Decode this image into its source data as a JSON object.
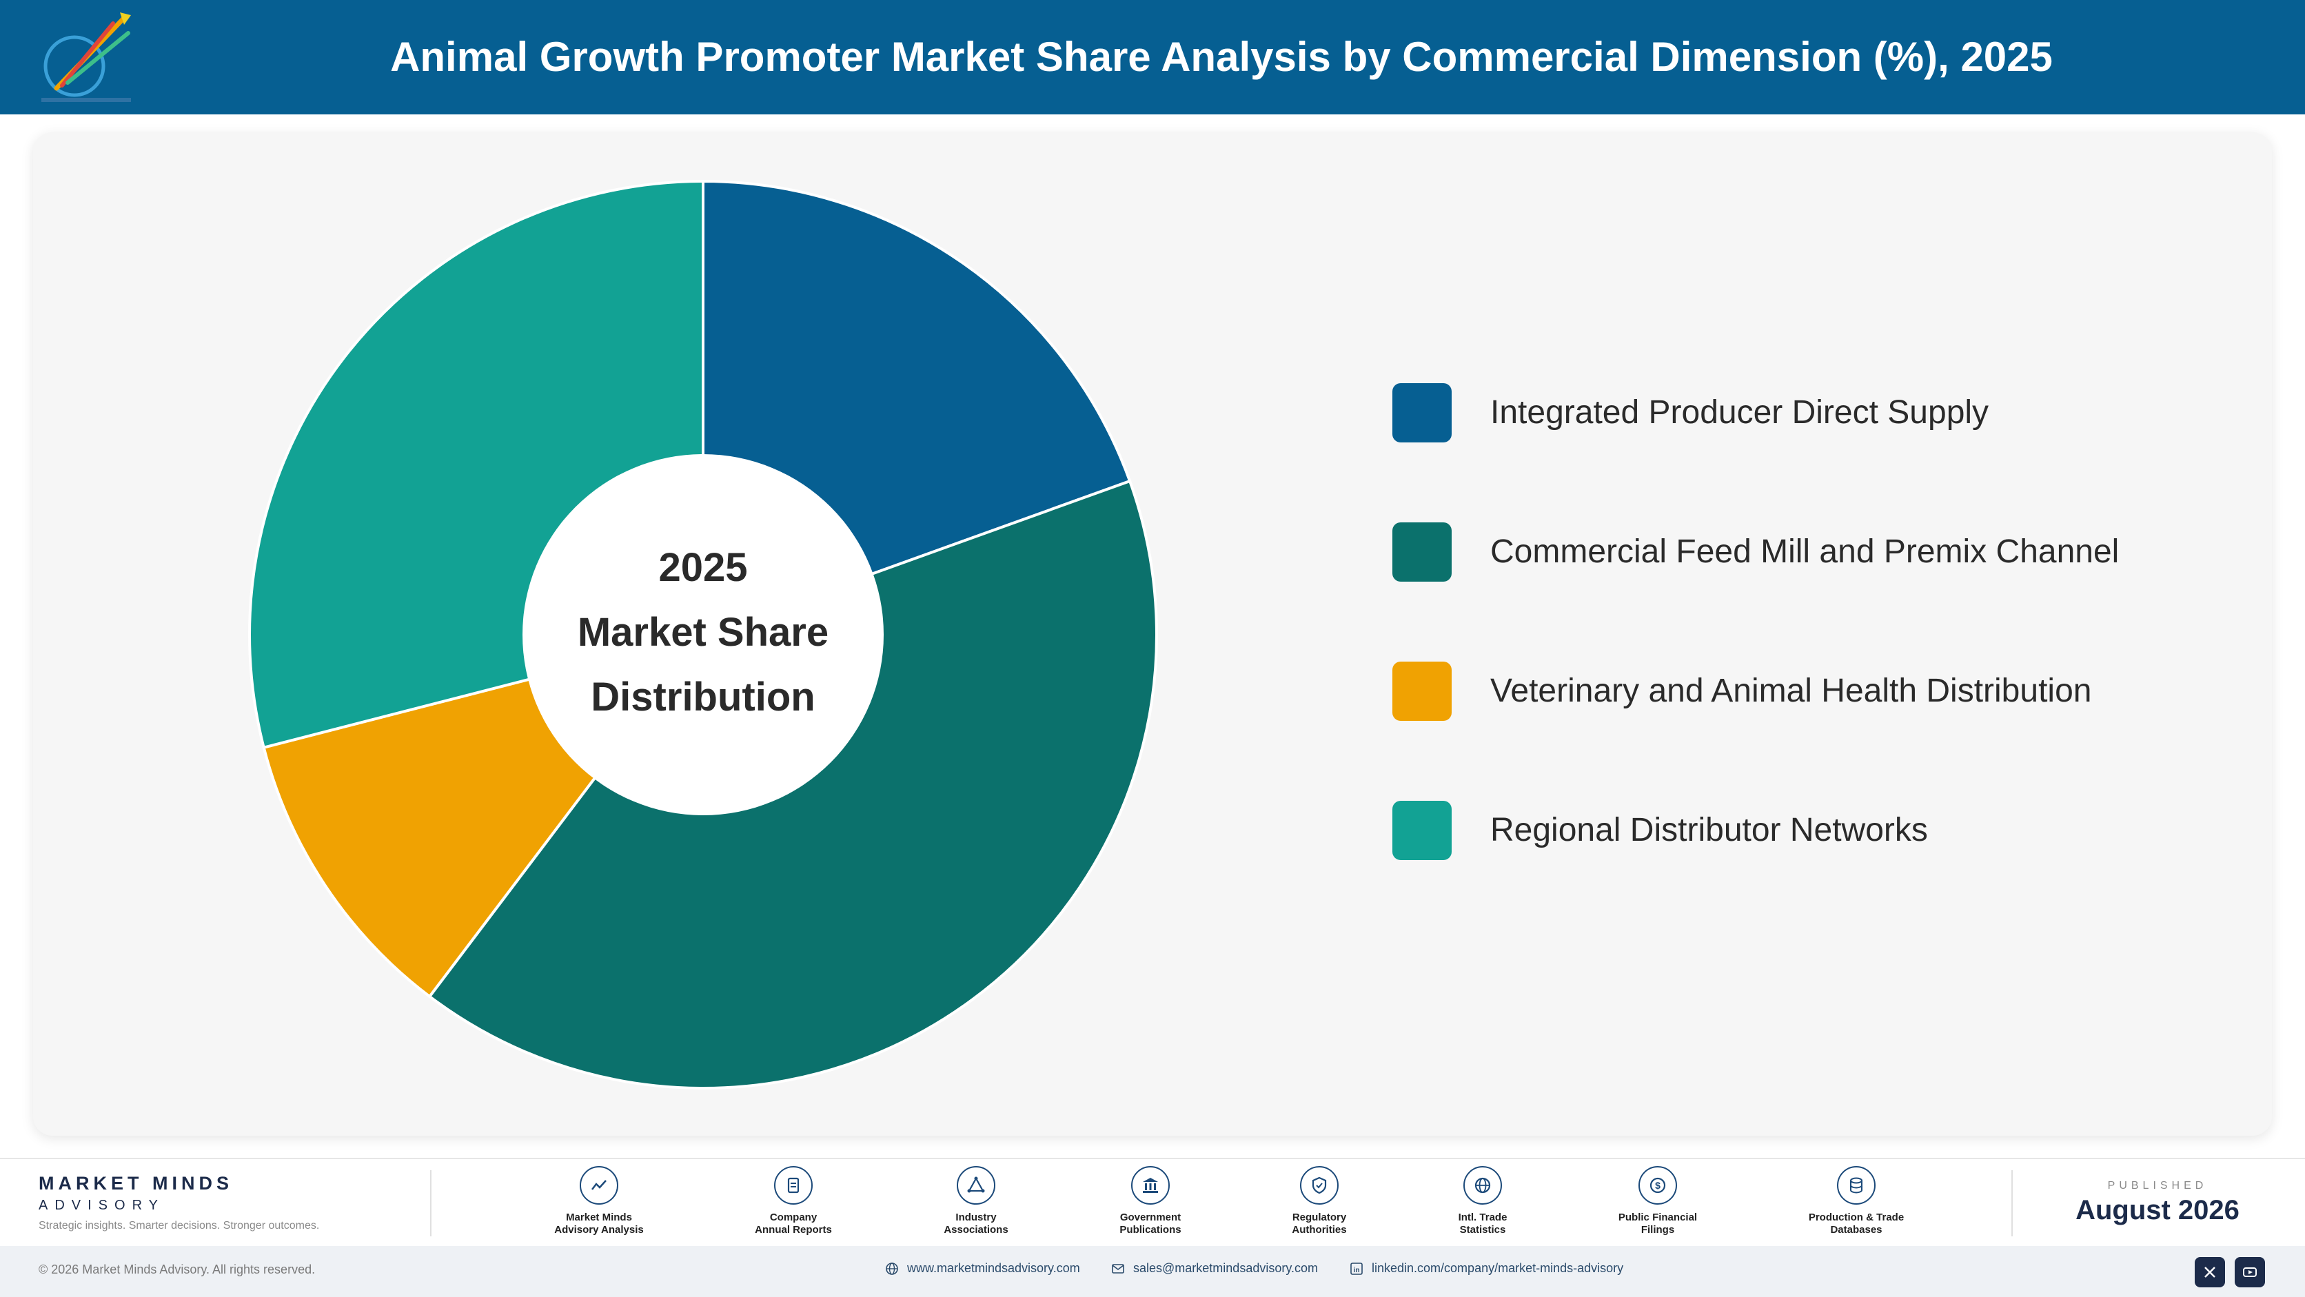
{
  "header": {
    "title": "Animal Growth Promoter Market Share Analysis by Commercial Dimension (%), 2025"
  },
  "colors": {
    "header_bg": "#065f92",
    "integrated": "#065f92",
    "commercial": "#0b716c",
    "veterinary": "#f0a202",
    "regional": "#12a294"
  },
  "chart_data": {
    "type": "pie",
    "title": "",
    "center_label": [
      "2025",
      "Market Share",
      "Distribution"
    ],
    "series": [
      {
        "name": "Integrated Producer Direct Supply",
        "value": 19.5,
        "color": "#065f92"
      },
      {
        "name": "Commercial Feed Mill and Premix Channel",
        "value": 40.8,
        "color": "#0b716c"
      },
      {
        "name": "Veterinary and Animal Health Distribution",
        "value": 10.7,
        "color": "#f0a202"
      },
      {
        "name": "Regional Distributor Networks",
        "value": 29.0,
        "color": "#12a294"
      }
    ],
    "legend_placement": "right",
    "data_labels": false
  },
  "footer": {
    "brand_name": "MARKET MINDS",
    "brand_sub": "ADVISORY",
    "brand_tagline": "Strategic insights. Smarter decisions. Stronger outcomes.",
    "sources": [
      {
        "line1": "Market Minds",
        "line2": "Advisory Analysis",
        "icon": "trend-icon"
      },
      {
        "line1": "Company",
        "line2": "Annual Reports",
        "icon": "document-icon"
      },
      {
        "line1": "Industry",
        "line2": "Associations",
        "icon": "network-icon"
      },
      {
        "line1": "Government",
        "line2": "Publications",
        "icon": "building-icon"
      },
      {
        "line1": "Regulatory",
        "line2": "Authorities",
        "icon": "shield-icon"
      },
      {
        "line1": "Intl. Trade",
        "line2": "Statistics",
        "icon": "globe-icon"
      },
      {
        "line1": "Public Financial",
        "line2": "Filings",
        "icon": "coin-icon"
      },
      {
        "line1": "Production & Trade",
        "line2": "Databases",
        "icon": "database-icon"
      }
    ],
    "published_label": "PUBLISHED",
    "published_date": "August 2026",
    "copyright": "© 2026 Market Minds Advisory. All rights reserved.",
    "website": "www.marketmindsadvisory.com",
    "email": "sales@marketmindsadvisory.com",
    "linkedin": "linkedin.com/company/market-minds-advisory",
    "social_icons": [
      "x-icon",
      "youtube-icon"
    ]
  }
}
